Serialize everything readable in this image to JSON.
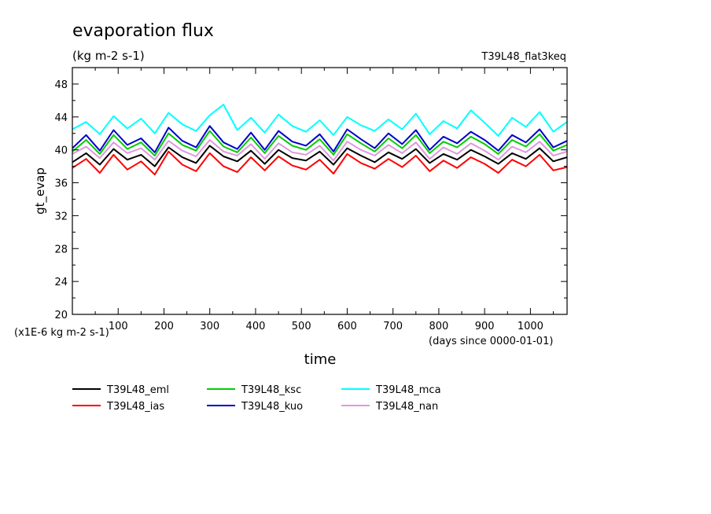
{
  "chart_data": {
    "type": "line",
    "title": "evaporation flux",
    "subtitle": "(kg m-2 s-1)",
    "run_label": "T39L48_flat3keq",
    "xlabel": "time",
    "x_unit_label": "(days since 0000-01-01)",
    "ylabel": "gt_evap",
    "y_unit_label": "(x1E-6 kg m-2 s-1)",
    "xlim": [
      0,
      1080
    ],
    "ylim": [
      20,
      50
    ],
    "x_ticks": [
      100,
      200,
      300,
      400,
      500,
      600,
      700,
      800,
      900,
      1000
    ],
    "x_tick_labels": [
      "100",
      "200",
      "300",
      "400",
      "500",
      "600",
      "700",
      "800",
      "900",
      "1000"
    ],
    "y_ticks": [
      20,
      24,
      28,
      32,
      36,
      40,
      44,
      48
    ],
    "y_tick_labels": [
      "20",
      "24",
      "28",
      "32",
      "36",
      "40",
      "44",
      "48"
    ],
    "grid": false,
    "legend_position": "bottom-left",
    "x": [
      0,
      30,
      60,
      90,
      120,
      150,
      180,
      210,
      240,
      270,
      300,
      330,
      360,
      390,
      420,
      450,
      480,
      510,
      540,
      570,
      600,
      630,
      660,
      690,
      720,
      750,
      780,
      810,
      840,
      870,
      900,
      930,
      960,
      990,
      1020,
      1050,
      1080
    ],
    "series": [
      {
        "name": "T39L48_eml",
        "color": "#000000",
        "values": [
          38.5,
          39.6,
          38.2,
          40.1,
          38.8,
          39.4,
          38.0,
          40.3,
          39.1,
          38.4,
          40.5,
          39.2,
          38.6,
          39.9,
          38.3,
          40.0,
          39.0,
          38.7,
          39.8,
          38.2,
          40.2,
          39.3,
          38.5,
          39.7,
          38.9,
          40.1,
          38.4,
          39.5,
          38.8,
          40.0,
          39.2,
          38.3,
          39.6,
          38.9,
          40.2,
          38.6,
          39.1
        ]
      },
      {
        "name": "T39L48_ias",
        "color": "#ff0000",
        "values": [
          37.8,
          38.9,
          37.2,
          39.4,
          37.6,
          38.6,
          37.0,
          39.8,
          38.2,
          37.4,
          39.6,
          38.0,
          37.3,
          39.1,
          37.5,
          39.2,
          38.1,
          37.6,
          38.8,
          37.1,
          39.5,
          38.4,
          37.7,
          38.9,
          37.9,
          39.3,
          37.4,
          38.7,
          37.8,
          39.1,
          38.3,
          37.2,
          38.8,
          38.0,
          39.4,
          37.5,
          37.9
        ]
      },
      {
        "name": "T39L48_ksc",
        "color": "#00cc00",
        "values": [
          39.8,
          41.2,
          39.5,
          41.8,
          40.1,
          40.9,
          39.3,
          42.0,
          40.6,
          39.9,
          42.3,
          40.4,
          39.7,
          41.5,
          39.6,
          41.7,
          40.5,
          40.0,
          41.3,
          39.4,
          41.9,
          40.8,
          39.8,
          41.4,
          40.2,
          41.8,
          39.6,
          41.0,
          40.3,
          41.6,
          40.7,
          39.5,
          41.2,
          40.4,
          41.9,
          39.9,
          40.6
        ]
      },
      {
        "name": "T39L48_kuo",
        "color": "#0000cc",
        "values": [
          40.2,
          41.8,
          39.9,
          42.4,
          40.6,
          41.4,
          39.7,
          42.7,
          41.1,
          40.3,
          42.9,
          40.9,
          40.1,
          42.1,
          40.0,
          42.3,
          41.0,
          40.5,
          41.9,
          39.8,
          42.5,
          41.3,
          40.2,
          42.0,
          40.7,
          42.4,
          40.0,
          41.6,
          40.8,
          42.2,
          41.2,
          39.9,
          41.8,
          40.9,
          42.5,
          40.3,
          41.1
        ]
      },
      {
        "name": "T39L48_mca",
        "color": "#00ffff",
        "values": [
          42.5,
          43.4,
          41.9,
          44.1,
          42.6,
          43.8,
          42.0,
          44.5,
          43.1,
          42.3,
          44.2,
          45.5,
          42.4,
          43.9,
          42.1,
          44.3,
          42.9,
          42.2,
          43.6,
          41.8,
          44.0,
          43.0,
          42.3,
          43.7,
          42.5,
          44.4,
          41.9,
          43.5,
          42.6,
          44.8,
          43.3,
          41.7,
          43.9,
          42.8,
          44.6,
          42.2,
          43.4
        ]
      },
      {
        "name": "T39L48_nan",
        "color": "#dd99dd",
        "values": [
          39.5,
          40.4,
          39.0,
          40.9,
          39.6,
          40.2,
          38.8,
          41.1,
          39.9,
          39.2,
          41.2,
          39.8,
          39.3,
          40.7,
          38.9,
          40.8,
          39.7,
          39.4,
          40.5,
          38.7,
          41.0,
          40.0,
          39.3,
          40.6,
          39.6,
          40.9,
          38.9,
          40.3,
          39.5,
          40.8,
          39.9,
          38.8,
          40.4,
          39.7,
          41.0,
          39.3,
          39.8
        ]
      }
    ]
  }
}
